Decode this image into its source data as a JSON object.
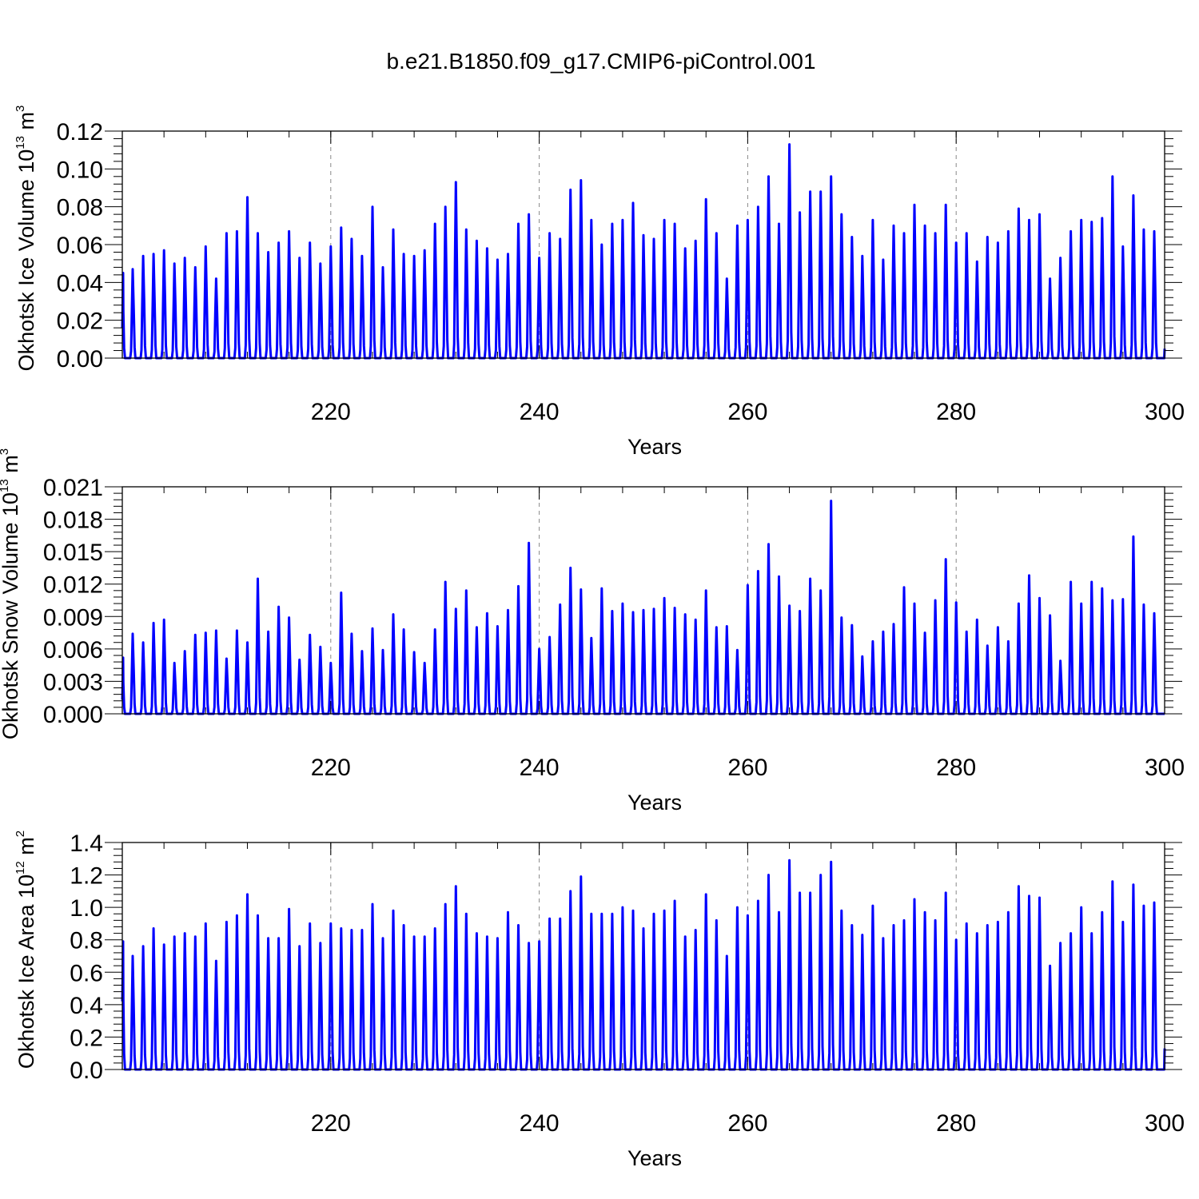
{
  "title": "b.e21.B1850.f09_g17.CMIP6-piControl.001",
  "chart_data": [
    {
      "type": "line",
      "xlabel": "Years",
      "ylabel": {
        "prefix": "Okhotsk Ice Volume 10",
        "exp": "13",
        "unit": " m",
        "unit_exp": "3"
      },
      "xlim": [
        200,
        300
      ],
      "ylim": [
        0,
        0.12
      ],
      "grid": "dashed vertical lines at major x ticks",
      "x_ticks": [
        220,
        240,
        260,
        280,
        300
      ],
      "x_tick_labels": [
        "220",
        "240",
        "260",
        "280",
        "300"
      ],
      "y_ticks": [
        0,
        0.02,
        0.04,
        0.06,
        0.08,
        0.1,
        0.12
      ],
      "y_tick_labels": [
        "0.00",
        "0.02",
        "0.04",
        "0.06",
        "0.08",
        "0.10",
        "0.12"
      ],
      "color": "#0000ff",
      "series": [
        {
          "start_year": 200.0,
          "start_value": 0.016,
          "annual_peaks": [
            0.045,
            0.047,
            0.054,
            0.055,
            0.057,
            0.05,
            0.053,
            0.048,
            0.059,
            0.042,
            0.066,
            0.067,
            0.085,
            0.066,
            0.056,
            0.061,
            0.067,
            0.053,
            0.061,
            0.05,
            0.059,
            0.069,
            0.063,
            0.054,
            0.08,
            0.048,
            0.068,
            0.055,
            0.054,
            0.057,
            0.071,
            0.08,
            0.093,
            0.068,
            0.062,
            0.058,
            0.052,
            0.055,
            0.071,
            0.076,
            0.053,
            0.066,
            0.063,
            0.089,
            0.094,
            0.073,
            0.06,
            0.071,
            0.073,
            0.082,
            0.065,
            0.063,
            0.073,
            0.071,
            0.058,
            0.062,
            0.084,
            0.066,
            0.042,
            0.07,
            0.073,
            0.08,
            0.096,
            0.071,
            0.113,
            0.077,
            0.088,
            0.088,
            0.096,
            0.076,
            0.064,
            0.054,
            0.073,
            0.052,
            0.07,
            0.066,
            0.081,
            0.07,
            0.066,
            0.081,
            0.061,
            0.066,
            0.051,
            0.064,
            0.061,
            0.067,
            0.079,
            0.073,
            0.076,
            0.042,
            0.053,
            0.067,
            0.073,
            0.072,
            0.074,
            0.096,
            0.059,
            0.086,
            0.068,
            0.067
          ],
          "end_value": 0.005
        }
      ]
    },
    {
      "type": "line",
      "xlabel": "Years",
      "ylabel": {
        "prefix": "Okhotsk Snow Volume 10",
        "exp": "13",
        "unit": " m",
        "unit_exp": "3"
      },
      "xlim": [
        200,
        300
      ],
      "ylim": [
        0,
        0.021
      ],
      "grid": "dashed vertical lines at major x ticks",
      "x_ticks": [
        220,
        240,
        260,
        280,
        300
      ],
      "x_tick_labels": [
        "220",
        "240",
        "260",
        "280",
        "300"
      ],
      "y_ticks": [
        0,
        0.003,
        0.006,
        0.009,
        0.012,
        0.015,
        0.018,
        0.021
      ],
      "y_tick_labels": [
        "0.000",
        "0.003",
        "0.006",
        "0.009",
        "0.012",
        "0.015",
        "0.018",
        "0.021"
      ],
      "color": "#0000ff",
      "series": [
        {
          "start_year": 200.0,
          "start_value": 0.0013,
          "annual_peaks": [
            0.0052,
            0.0074,
            0.0066,
            0.0084,
            0.0087,
            0.0047,
            0.0058,
            0.0073,
            0.0075,
            0.0077,
            0.0051,
            0.0077,
            0.0066,
            0.0125,
            0.0076,
            0.0099,
            0.0089,
            0.005,
            0.0073,
            0.0062,
            0.0047,
            0.0112,
            0.0074,
            0.0058,
            0.0079,
            0.0059,
            0.0092,
            0.0078,
            0.0057,
            0.0047,
            0.0078,
            0.0122,
            0.0097,
            0.0114,
            0.008,
            0.0093,
            0.0081,
            0.0096,
            0.0118,
            0.0158,
            0.006,
            0.0071,
            0.0101,
            0.0135,
            0.0115,
            0.007,
            0.0116,
            0.0095,
            0.0102,
            0.0094,
            0.0096,
            0.0097,
            0.0107,
            0.0098,
            0.0092,
            0.0087,
            0.0114,
            0.008,
            0.0081,
            0.0059,
            0.0119,
            0.0132,
            0.0157,
            0.0127,
            0.01,
            0.0095,
            0.0125,
            0.0114,
            0.0197,
            0.0089,
            0.0082,
            0.0053,
            0.0067,
            0.0076,
            0.0083,
            0.0117,
            0.0102,
            0.0075,
            0.0105,
            0.0143,
            0.0103,
            0.0076,
            0.0087,
            0.0063,
            0.008,
            0.0067,
            0.0102,
            0.0128,
            0.0107,
            0.0091,
            0.0049,
            0.0122,
            0.0102,
            0.0122,
            0.0116,
            0.0105,
            0.0106,
            0.0164,
            0.0101,
            0.0093
          ],
          "end_value": 0.0
        }
      ]
    },
    {
      "type": "line",
      "xlabel": "Years",
      "ylabel": {
        "prefix": "Okhotsk Ice Area 10",
        "exp": "12",
        "unit": " m",
        "unit_exp": "2"
      },
      "xlim": [
        200,
        300
      ],
      "ylim": [
        0,
        1.4
      ],
      "grid": "dashed vertical lines at major x ticks",
      "x_ticks": [
        220,
        240,
        260,
        280,
        300
      ],
      "x_tick_labels": [
        "220",
        "240",
        "260",
        "280",
        "300"
      ],
      "y_ticks": [
        0,
        0.2,
        0.4,
        0.6,
        0.8,
        1.0,
        1.2,
        1.4
      ],
      "y_tick_labels": [
        "0.0",
        "0.2",
        "0.4",
        "0.6",
        "0.8",
        "1.0",
        "1.2",
        "1.4"
      ],
      "color": "#0000ff",
      "series": [
        {
          "start_year": 200.0,
          "start_value": 0.42,
          "annual_peaks": [
            0.79,
            0.7,
            0.76,
            0.87,
            0.77,
            0.82,
            0.84,
            0.82,
            0.9,
            0.67,
            0.91,
            0.95,
            1.08,
            0.95,
            0.81,
            0.81,
            0.99,
            0.76,
            0.9,
            0.78,
            0.9,
            0.87,
            0.86,
            0.86,
            1.02,
            0.81,
            0.98,
            0.89,
            0.82,
            0.82,
            0.87,
            1.02,
            1.13,
            0.96,
            0.84,
            0.82,
            0.81,
            0.97,
            0.89,
            0.78,
            0.79,
            0.93,
            0.93,
            1.1,
            1.19,
            0.96,
            0.96,
            0.96,
            1.0,
            0.98,
            0.87,
            0.96,
            0.98,
            1.04,
            0.82,
            0.86,
            1.08,
            0.92,
            0.7,
            1.0,
            0.95,
            1.04,
            1.2,
            0.97,
            1.29,
            1.09,
            1.09,
            1.2,
            1.28,
            0.98,
            0.89,
            0.83,
            1.01,
            0.81,
            0.89,
            0.92,
            1.05,
            0.97,
            0.92,
            1.09,
            0.8,
            0.9,
            0.84,
            0.89,
            0.91,
            0.97,
            1.13,
            1.07,
            1.06,
            0.64,
            0.78,
            0.84,
            1.0,
            0.84,
            0.97,
            1.16,
            0.91,
            1.14,
            1.01,
            1.03
          ],
          "end_value": 0.13
        }
      ]
    }
  ]
}
